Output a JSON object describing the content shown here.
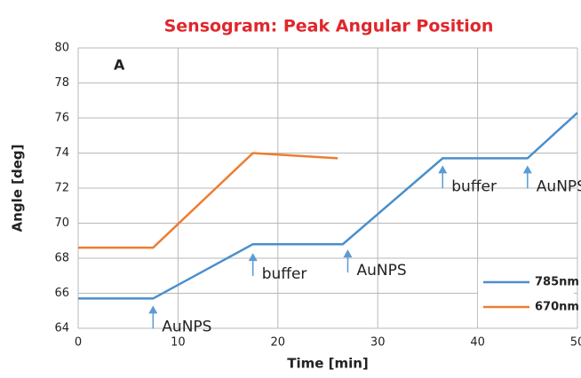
{
  "chart_data": {
    "type": "line",
    "title": "Sensogram: Peak Angular Position",
    "panel_label": "A",
    "xlabel": "Time [min]",
    "ylabel": "Angle [deg]",
    "xlim": [
      0,
      50
    ],
    "xticks": [
      0,
      10,
      20,
      30,
      40,
      50
    ],
    "ylim": [
      64,
      80
    ],
    "yticks": [
      64,
      66,
      68,
      70,
      72,
      74,
      76,
      78,
      80
    ],
    "grid": true,
    "legend": "lower right",
    "series": [
      {
        "name": "785nm",
        "color": "#4a8fcb",
        "x": [
          0,
          7.5,
          17.5,
          26.5,
          36.5,
          45,
          50
        ],
        "values": [
          65.7,
          65.7,
          68.8,
          68.8,
          73.7,
          73.7,
          76.3
        ]
      },
      {
        "name": "670nm",
        "color": "#ed7d31",
        "x": [
          0,
          7.5,
          17.5,
          26
        ],
        "values": [
          68.6,
          68.6,
          74.0,
          73.7
        ]
      }
    ],
    "annotations": [
      {
        "text": "AuNPS",
        "x": 7.5,
        "y": 65.3
      },
      {
        "text": "buffer",
        "x": 17.5,
        "y": 68.3
      },
      {
        "text": "AuNPS",
        "x": 27,
        "y": 68.5
      },
      {
        "text": "buffer",
        "x": 36.5,
        "y": 73.3
      },
      {
        "text": "AuNPS",
        "x": 45,
        "y": 73.3
      }
    ]
  }
}
